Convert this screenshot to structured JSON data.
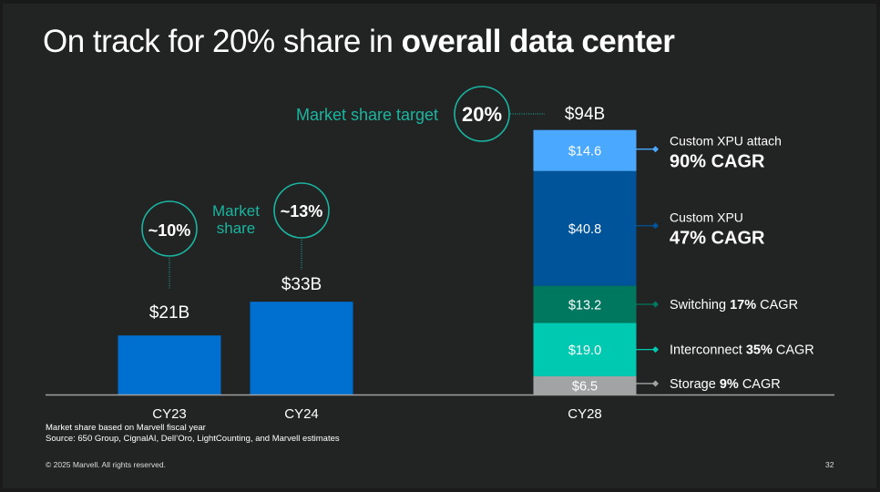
{
  "title": {
    "regular": "On track for 20% share in ",
    "bold": "overall data center"
  },
  "colors": {
    "background": "#222323",
    "bar_blue": "#0070d0",
    "teal_accent": "#1ab5a0",
    "axis": "#a0a0a0"
  },
  "annotations": {
    "target_label": "Market share target",
    "target_value": "20%",
    "market_share_label_line1": "Market",
    "market_share_label_line2": "share",
    "cy23_share": "~10%",
    "cy24_share": "~13%"
  },
  "chart_data": {
    "type": "bar",
    "title": "On track for 20% share in overall data center",
    "xlabel": "",
    "ylabel": "",
    "units": "$B",
    "categories": [
      "CY23",
      "CY24",
      "CY28"
    ],
    "totals": [
      21,
      33,
      94
    ],
    "total_labels": [
      "$21B",
      "$33B",
      "$94B"
    ],
    "market_share": [
      "~10%",
      "~13%",
      "20%"
    ],
    "simple_bars": [
      {
        "category": "CY23",
        "value": 21,
        "label": "$21B",
        "color": "#0070d0"
      },
      {
        "category": "CY24",
        "value": 33,
        "label": "$33B",
        "color": "#0070d0"
      }
    ],
    "stacked": {
      "category": "CY28",
      "segments": [
        {
          "name": "Storage",
          "value": 6.5,
          "label": "$6.5",
          "color": "#a2a3a5",
          "legend_prefix": "Storage ",
          "legend_bold": "9%",
          "legend_suffix": " CAGR",
          "cagr": "9%"
        },
        {
          "name": "Interconnect",
          "value": 19.0,
          "label": "$19.0",
          "color": "#00c9b1",
          "legend_prefix": "Interconnect ",
          "legend_bold": "35%",
          "legend_suffix": " CAGR",
          "cagr": "35%"
        },
        {
          "name": "Switching",
          "value": 13.2,
          "label": "$13.2",
          "color": "#00785f",
          "legend_prefix": "Switching ",
          "legend_bold": "17%",
          "legend_suffix": " CAGR",
          "cagr": "17%"
        },
        {
          "name": "Custom XPU",
          "value": 40.8,
          "label": "$40.8",
          "color": "#00549a",
          "legend_line1": "Custom XPU",
          "legend_line2": "47% CAGR",
          "cagr": "47%"
        },
        {
          "name": "Custom XPU attach",
          "value": 14.6,
          "label": "$14.6",
          "color": "#4aa8ff",
          "legend_line1": "Custom XPU attach",
          "legend_line2": "90% CAGR",
          "cagr": "90%"
        }
      ]
    },
    "ylim": [
      0,
      94
    ],
    "grid": false,
    "legend": "right"
  },
  "footnotes": {
    "line1": "Market share based on Marvell fiscal year",
    "line2": "Source: 650 Group, CignalAI, Dell’Oro, LightCounting, and Marvell estimates",
    "copyright": "© 2025 Marvell. All rights reserved.",
    "page_number": "32"
  }
}
